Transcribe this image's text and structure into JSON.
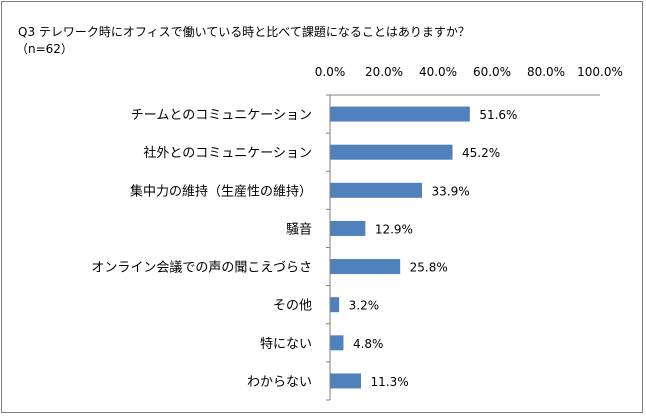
{
  "chart_data": {
    "type": "bar",
    "orientation": "horizontal",
    "title": "Q3 テレワーク時にオフィスで働いている時と比べて課題になることはありますか？",
    "subtitle": "（n=62）",
    "categories": [
      "チームとのコミュニケーション",
      "社外とのコミュニケーション",
      "集中力の維持（生産性の維持）",
      "騒音",
      "オンライン会議での声の聞こえづらさ",
      "その他",
      "特にない",
      "わからない"
    ],
    "values": [
      51.6,
      45.2,
      33.9,
      12.9,
      25.8,
      3.2,
      4.8,
      11.3
    ],
    "data_labels": [
      "51.6%",
      "45.2%",
      "33.9%",
      "12.9%",
      "25.8%",
      "3.2%",
      "4.8%",
      "11.3%"
    ],
    "xlim": [
      0,
      100
    ],
    "ticks": [
      0,
      20,
      40,
      60,
      80,
      100
    ],
    "tick_labels": [
      "0.0%",
      "20.0%",
      "40.0%",
      "60.0%",
      "80.0%",
      "100.0%"
    ],
    "axis_position": "top",
    "grid": false,
    "legend": "none",
    "bar_color": "#4f81bd"
  }
}
